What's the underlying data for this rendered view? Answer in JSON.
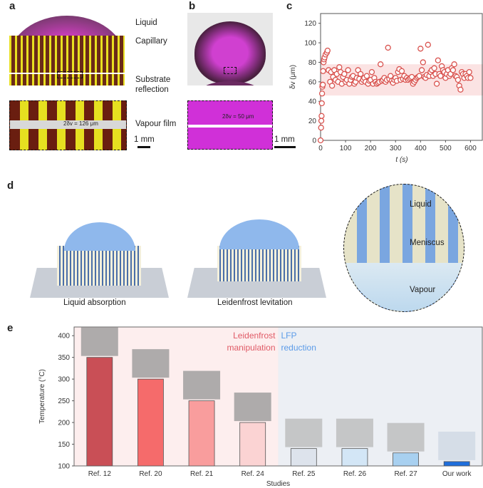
{
  "panels": {
    "a": "a",
    "b": "b",
    "c": "c",
    "d": "d",
    "e": "e"
  },
  "panel_a": {
    "labels": [
      "Liquid",
      "Capillary",
      "Substrate",
      "reflection",
      "Vapour film"
    ],
    "measure": "2δv = 126 μm",
    "scale": "1 mm"
  },
  "panel_b": {
    "measure": "2δv = 50 μm",
    "scale": "1 mm"
  },
  "panel_d": {
    "captions": [
      "Liquid absorption",
      "Leidenfrost levitation"
    ],
    "zoom_labels": [
      "Liquid",
      "Meniscus",
      "Vapour"
    ]
  },
  "chart_data": [
    {
      "type": "scatter",
      "xlabel": "t (s)",
      "ylabel": "δv (μm)",
      "xlim": [
        0,
        650
      ],
      "ylim": [
        0,
        130
      ],
      "xticks": [
        0,
        100,
        200,
        300,
        400,
        500,
        600
      ],
      "yticks": [
        0,
        20,
        40,
        60,
        80,
        100,
        120
      ],
      "band": [
        46,
        78
      ],
      "band_color": "#fbe3e3",
      "marker_color": "#d9534f",
      "x": [
        0,
        2,
        3,
        4,
        5,
        6,
        7,
        8,
        9,
        10,
        12,
        14,
        16,
        20,
        25,
        28,
        32,
        38,
        42,
        46,
        50,
        55,
        60,
        65,
        70,
        75,
        80,
        85,
        90,
        95,
        100,
        105,
        110,
        115,
        120,
        125,
        130,
        135,
        140,
        145,
        150,
        155,
        160,
        165,
        170,
        175,
        180,
        185,
        190,
        195,
        200,
        205,
        210,
        215,
        220,
        225,
        230,
        235,
        240,
        245,
        250,
        255,
        260,
        265,
        270,
        275,
        280,
        285,
        290,
        295,
        300,
        305,
        310,
        315,
        320,
        325,
        330,
        335,
        340,
        345,
        350,
        355,
        360,
        365,
        370,
        375,
        380,
        385,
        390,
        395,
        400,
        405,
        410,
        415,
        420,
        425,
        430,
        435,
        440,
        445,
        450,
        455,
        460,
        465,
        470,
        475,
        480,
        485,
        490,
        495,
        500,
        505,
        510,
        515,
        520,
        525,
        530,
        535,
        540,
        545,
        550,
        555,
        560,
        565,
        570,
        575,
        580,
        585,
        590,
        595,
        600
      ],
      "y": [
        0,
        13,
        20,
        25,
        38,
        48,
        55,
        57,
        57,
        71,
        80,
        83,
        85,
        88,
        90,
        92,
        72,
        60,
        70,
        56,
        65,
        72,
        62,
        68,
        60,
        75,
        70,
        58,
        65,
        68,
        60,
        62,
        72,
        58,
        62,
        65,
        66,
        58,
        60,
        64,
        72,
        63,
        68,
        60,
        62,
        64,
        60,
        66,
        58,
        61,
        62,
        70,
        58,
        64,
        60,
        58,
        59,
        60,
        78,
        61,
        62,
        64,
        60,
        62,
        95,
        63,
        66,
        61,
        59,
        62,
        64,
        61,
        70,
        73,
        62,
        71,
        63,
        66,
        62,
        64,
        62,
        63,
        64,
        65,
        58,
        60,
        62,
        64,
        65,
        66,
        94,
        72,
        80,
        65,
        64,
        67,
        98,
        66,
        70,
        72,
        66,
        74,
        68,
        58,
        82,
        68,
        66,
        76,
        72,
        70,
        64,
        68,
        72,
        66,
        68,
        74,
        72,
        78,
        66,
        65,
        62,
        56,
        52,
        70,
        68,
        64,
        68,
        66,
        64,
        70,
        64
      ]
    },
    {
      "type": "bar",
      "xlabel": "Studies",
      "ylabel": "Temperature (°C)",
      "ylim": [
        100,
        420
      ],
      "yticks": [
        100,
        150,
        200,
        250,
        300,
        350,
        400
      ],
      "categories": [
        "Ref. 12",
        "Ref. 20",
        "Ref. 21",
        "Ref. 24",
        "Ref. 25",
        "Ref. 26",
        "Ref. 27",
        "Our work"
      ],
      "values": [
        350,
        300,
        250,
        200,
        140,
        140,
        130,
        110
      ],
      "colors": [
        "#c94f56",
        "#f56b6b",
        "#f99d9d",
        "#fbd3d3",
        "#dde3ec",
        "#d3e6f6",
        "#a8d0f0",
        "#1f6fdc"
      ],
      "regions": [
        {
          "label": [
            "Leidenfrost",
            "manipulation"
          ],
          "color": "#fdeeee",
          "text_color": "#e05a66"
        },
        {
          "label": [
            "LFP",
            "reduction"
          ],
          "color": "#eceff4",
          "text_color": "#5b9be8"
        }
      ]
    }
  ]
}
